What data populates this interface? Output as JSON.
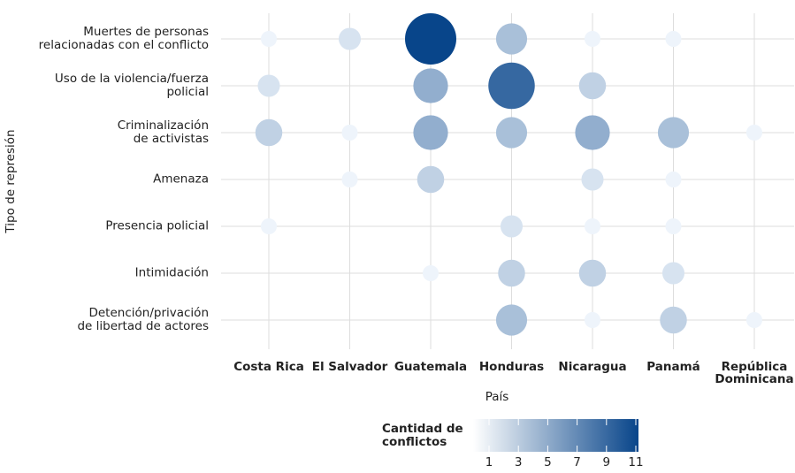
{
  "chart_data": {
    "type": "bubble-matrix",
    "x_label": "País",
    "y_label": "Tipo de represión",
    "legend_title": "Cantidad de\nconflictos",
    "x_categories": [
      "Costa Rica",
      "El Salvador",
      "Guatemala",
      "Honduras",
      "Nicaragua",
      "Panamá",
      "República\nDominicana"
    ],
    "y_categories": [
      "Muertes de personas\nrelacionadas con el conflicto",
      "Uso de la violencia/fuerza\npolicial",
      "Criminalización\nde activistas",
      "Amenaza",
      "Presencia policial",
      "Intimidación",
      "Detención/privación\nde libertad de actores"
    ],
    "values": [
      [
        1,
        2,
        11,
        4,
        1,
        1,
        null
      ],
      [
        2,
        null,
        5,
        9,
        3,
        null,
        null
      ],
      [
        3,
        1,
        5,
        4,
        5,
        4,
        1
      ],
      [
        null,
        1,
        3,
        null,
        2,
        1,
        null
      ],
      [
        1,
        null,
        null,
        2,
        1,
        1,
        null
      ],
      [
        null,
        null,
        1,
        3,
        3,
        2,
        null
      ],
      [
        null,
        null,
        null,
        4,
        1,
        3,
        1
      ]
    ],
    "color_range": [
      "#eef4fb",
      "#08458a"
    ],
    "clim": [
      1,
      11
    ],
    "cticks": [
      1,
      3,
      5,
      7,
      9,
      11
    ],
    "grid": true
  }
}
